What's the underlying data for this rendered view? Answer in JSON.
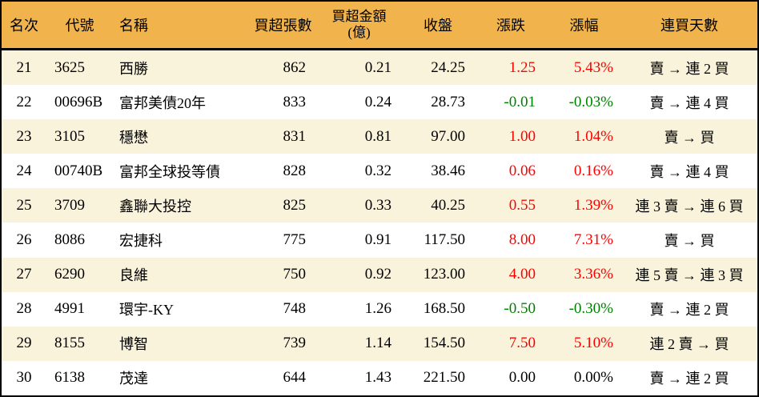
{
  "colors": {
    "header_bg": "#F1B44C",
    "stripe_bg": "#FAF3DC",
    "row_bg": "#FFFFFF",
    "up_red": "#FF0000",
    "down_green": "#008000",
    "flat_black": "#000000",
    "border": "#000000"
  },
  "header": {
    "rank": "名次",
    "code": "代號",
    "name": "名稱",
    "volume": "買超張數",
    "amount_line1": "買超金額",
    "amount_line2": "(億)",
    "close": "收盤",
    "change": "漲跌",
    "change_pct": "漲幅",
    "streak": "連買天數"
  },
  "chart_data": {
    "type": "table",
    "columns": [
      "名次",
      "代號",
      "名稱",
      "買超張數",
      "買超金額(億)",
      "收盤",
      "漲跌",
      "漲幅",
      "連買天數"
    ],
    "rows": [
      {
        "rank": "21",
        "code": "3625",
        "name": "西勝",
        "volume": "862",
        "amount": "0.21",
        "close": "24.25",
        "change": "1.25",
        "change_pct": "5.43%",
        "streak": "賣 → 連 2 買",
        "trend": "up"
      },
      {
        "rank": "22",
        "code": "00696B",
        "name": "富邦美債20年",
        "volume": "833",
        "amount": "0.24",
        "close": "28.73",
        "change": "-0.01",
        "change_pct": "-0.03%",
        "streak": "賣 → 連 4 買",
        "trend": "down"
      },
      {
        "rank": "23",
        "code": "3105",
        "name": "穩懋",
        "volume": "831",
        "amount": "0.81",
        "close": "97.00",
        "change": "1.00",
        "change_pct": "1.04%",
        "streak": "賣 → 買",
        "trend": "up"
      },
      {
        "rank": "24",
        "code": "00740B",
        "name": "富邦全球投等債",
        "volume": "828",
        "amount": "0.32",
        "close": "38.46",
        "change": "0.06",
        "change_pct": "0.16%",
        "streak": "賣 → 連 4 買",
        "trend": "up"
      },
      {
        "rank": "25",
        "code": "3709",
        "name": "鑫聯大投控",
        "volume": "825",
        "amount": "0.33",
        "close": "40.25",
        "change": "0.55",
        "change_pct": "1.39%",
        "streak": "連 3 賣 → 連 6 買",
        "trend": "up"
      },
      {
        "rank": "26",
        "code": "8086",
        "name": "宏捷科",
        "volume": "775",
        "amount": "0.91",
        "close": "117.50",
        "change": "8.00",
        "change_pct": "7.31%",
        "streak": "賣 → 買",
        "trend": "up"
      },
      {
        "rank": "27",
        "code": "6290",
        "name": "良維",
        "volume": "750",
        "amount": "0.92",
        "close": "123.00",
        "change": "4.00",
        "change_pct": "3.36%",
        "streak": "連 5 賣 → 連 3 買",
        "trend": "up"
      },
      {
        "rank": "28",
        "code": "4991",
        "name": "環宇-KY",
        "volume": "748",
        "amount": "1.26",
        "close": "168.50",
        "change": "-0.50",
        "change_pct": "-0.30%",
        "streak": "賣 → 連 2 買",
        "trend": "down"
      },
      {
        "rank": "29",
        "code": "8155",
        "name": "博智",
        "volume": "739",
        "amount": "1.14",
        "close": "154.50",
        "change": "7.50",
        "change_pct": "5.10%",
        "streak": "連 2 賣 → 買",
        "trend": "up"
      },
      {
        "rank": "30",
        "code": "6138",
        "name": "茂達",
        "volume": "644",
        "amount": "1.43",
        "close": "221.50",
        "change": "0.00",
        "change_pct": "0.00%",
        "streak": "賣 → 連 2 買",
        "trend": "flat"
      }
    ]
  }
}
